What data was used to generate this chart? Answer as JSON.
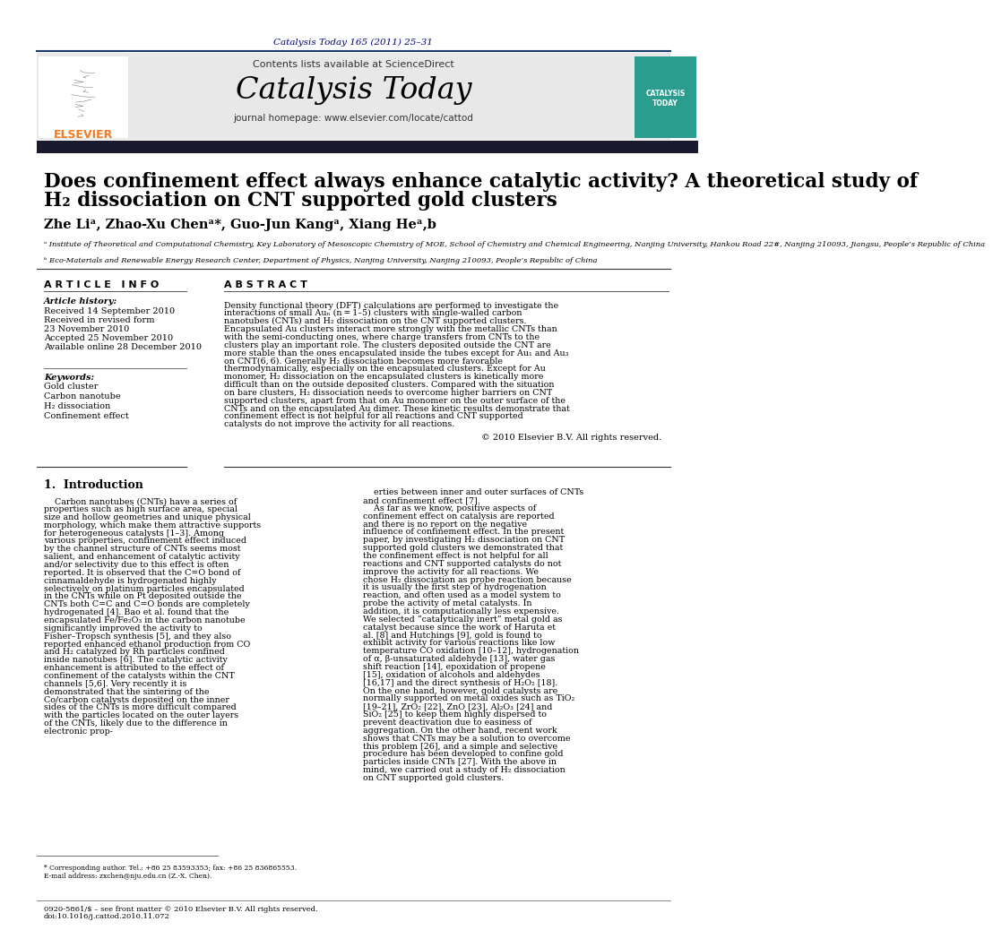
{
  "journal_ref": "Catalysis Today 165 (2011) 25–31",
  "journal_ref_color": "#000080",
  "contents_line": "Contents lists available at ",
  "sciencedirect": "ScienceDirect",
  "sciencedirect_color": "#1a6faf",
  "journal_name": "Catalysis Today",
  "journal_homepage_prefix": "journal homepage: ",
  "journal_homepage_url": "www.elsevier.com/locate/cattod",
  "journal_homepage_url_color": "#1a6faf",
  "header_bg": "#e8e8e8",
  "title_line1": "Does confinement effect always enhance catalytic activity? A theoretical study of",
  "title_line2": "H₂ dissociation on CNT supported gold clusters",
  "authors": "Zhe Liᵃ, Zhao-Xu Chenᵃ*, Guo-Jun Kangᵃ, Xiang Heᵃ,b",
  "affil_a": "ᵃ Institute of Theoretical and Computational Chemistry, Key Laboratory of Mesoscopic Chemistry of MOE, School of Chemistry and Chemical Engineering, Nanjing University, Hankou Road 22#, Nanjing 210093, Jiangsu, People’s Republic of China",
  "affil_b": "ᵇ Eco-Materials and Renewable Energy Research Center, Department of Physics, Nanjing University, Nanjing 210093, People’s Republic of China",
  "article_info_label": "A R T I C L E   I N F O",
  "abstract_label": "A B S T R A C T",
  "article_history_label": "Article history:",
  "received1": "Received 14 September 2010",
  "received2": "Received in revised form",
  "received2b": "23 November 2010",
  "accepted": "Accepted 25 November 2010",
  "available": "Available online 28 December 2010",
  "keywords_label": "Keywords:",
  "keywords": [
    "Gold cluster",
    "Carbon nanotube",
    "H₂ dissociation",
    "Confinement effect"
  ],
  "abstract_text": "Density functional theory (DFT) calculations are performed to investigate the interactions of small Auₙ (n = 1–5) clusters with single-walled carbon nanotubes (CNTs) and H₂ dissociation on the CNT supported clusters. Encapsulated Au clusters interact more strongly with the metallic CNTs than with the semi-conducting ones, where charge transfers from CNTs to the clusters play an important role. The clusters deposited outside the CNT are more stable than the ones encapsulated inside the tubes except for Au₁ and Au₃ on CNT(6, 6). Generally H₂ dissociation becomes more favorable thermodynamically, especially on the encapsulated clusters. Except for Au monomer, H₂ dissociation on the encapsulated clusters is kinetically more difficult than on the outside deposited clusters. Compared with the situation on bare clusters, H₂ dissociation needs to overcome higher barriers on CNT supported clusters, apart from that on Au monomer on the outer surface of the CNTs and on the encapsulated Au dimer. These kinetic results demonstrate that confinement effect is not helpful for all reactions and CNT supported catalysts do not improve the activity for all reactions.",
  "copyright": "© 2010 Elsevier B.V. All rights reserved.",
  "intro_heading": "1.  Introduction",
  "intro_col1": "Carbon nanotubes (CNTs) have a series of properties such as high surface area, special size and hollow geometries and unique physical morphology, which make them attractive supports for heterogeneous catalysts [1–3]. Among various properties, confinement effect induced by the channel structure of CNTs seems most salient, and enhancement of catalytic activity and/or selectivity due to this effect is often reported. It is observed that the C=O bond of cinnamaldehyde is hydrogenated highly selectively on platinum particles encapsulated in the CNTs while on Pt deposited outside the CNTs both C=C and C=O bonds are completely hydrogenated [4]. Bao et al. found that the encapsulated Fe/Fe₂O₃ in the carbon nanotube significantly improved the activity to Fisher–Tropsch synthesis [5], and they also reported enhanced ethanol production from CO and H₂ catalyzed by Rh particles confined inside nanotubes [6]. The catalytic activity enhancement is attributed to the effect of confinement of the catalysts within the CNT channels [5,6]. Very recently it is demonstrated that the sintering of the Co/carbon catalysts deposited on the inner sides of the CNTs is more difficult compared with the particles located on the outer layers of the CNTs, likely due to the difference in electronic prop-",
  "intro_col2": "erties between inner and outer surfaces of CNTs and confinement effect [7].\n    As far as we know, positive aspects of confinement effect on catalysis are reported and there is no report on the negative influence of confinement effect. In the present paper, by investigating H₂ dissociation on CNT supported gold clusters we demonstrated that the confinement effect is not helpful for all reactions and CNT supported catalysts do not improve the activity for all reactions. We chose H₂ dissociation as probe reaction because it is usually the first step of hydrogenation reaction, and often used as a model system to probe the activity of metal catalysts. In addition, it is computationally less expensive. We selected “catalytically inert” metal gold as catalyst because since the work of Haruta et al. [8] and Hutchings [9], gold is found to exhibit activity for various reactions like low temperature CO oxidation [10–12], hydrogenation of α, β-unsaturated aldehyde [13], water gas shift reaction [14], epoxidation of propene [15], oxidation of alcohols and aldehydes [16,17] and the direct synthesis of H₂O₂ [18]. On the one hand, however, gold catalysts are normally supported on metal oxides such as TiO₂ [19–21], ZrO₂ [22], ZnO [23], Al₂O₃ [24] and SiO₂ [25] to keep them highly dispersed to prevent deactivation due to easiness of aggregation. On the other hand, recent work shows that CNTs may be a solution to overcome this problem [26], and a simple and selective procedure has been developed to confine gold particles inside CNTs [27]. With the above in mind, we carried out a study of H₂ dissociation on CNT supported gold clusters.",
  "footnote_corresponding": "* Corresponding author. Tel.: +86 25 83593353; fax: +86 25 836865553.",
  "footnote_email": "E-mail address: zxchen@nju.edu.cn (Z.-X. Chen).",
  "footer_left": "0920-5861/$ – see front matter © 2010 Elsevier B.V. All rights reserved.",
  "footer_doi": "doi:10.1016/j.cattod.2010.11.072",
  "dark_bar_color": "#1a1a2e",
  "elsevier_orange": "#f47920"
}
